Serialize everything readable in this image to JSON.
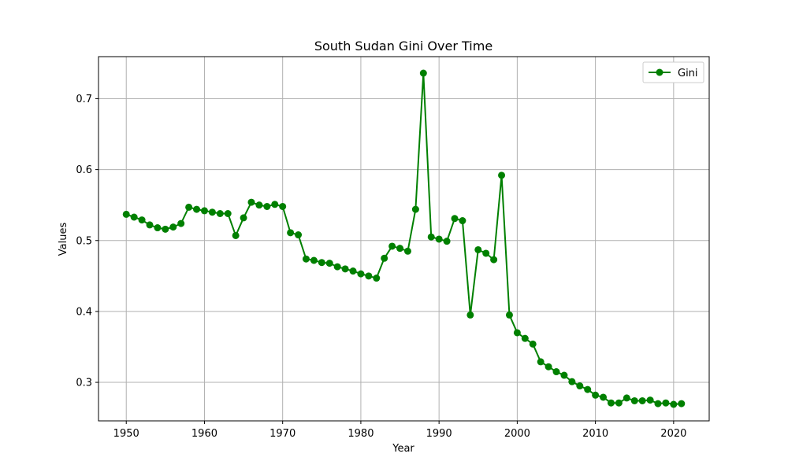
{
  "chart_data": {
    "type": "line",
    "title": "South Sudan Gini Over Time",
    "xlabel": "Year",
    "ylabel": "Values",
    "xlim": [
      1946.45,
      2024.55
    ],
    "ylim": [
      0.2457,
      0.7593
    ],
    "grid": true,
    "legend_position": "top-right",
    "x_ticks": [
      1950,
      1960,
      1970,
      1980,
      1990,
      2000,
      2010,
      2020
    ],
    "y_ticks": [
      0.3,
      0.4,
      0.5,
      0.6,
      0.7
    ],
    "x_tick_labels": [
      "1950",
      "1960",
      "1970",
      "1980",
      "1990",
      "2000",
      "2010",
      "2020"
    ],
    "y_tick_labels": [
      "0.3",
      "0.4",
      "0.5",
      "0.6",
      "0.7"
    ],
    "series": [
      {
        "name": "Gini",
        "color": "#008000",
        "marker": "circle",
        "x": [
          1950,
          1951,
          1952,
          1953,
          1954,
          1955,
          1956,
          1957,
          1958,
          1959,
          1960,
          1961,
          1962,
          1963,
          1964,
          1965,
          1966,
          1967,
          1968,
          1969,
          1970,
          1971,
          1972,
          1973,
          1974,
          1975,
          1976,
          1977,
          1978,
          1979,
          1980,
          1981,
          1982,
          1983,
          1984,
          1985,
          1986,
          1987,
          1988,
          1989,
          1990,
          1991,
          1992,
          1993,
          1994,
          1995,
          1996,
          1997,
          1998,
          1999,
          2000,
          2001,
          2002,
          2003,
          2004,
          2005,
          2006,
          2007,
          2008,
          2009,
          2010,
          2011,
          2012,
          2013,
          2014,
          2015,
          2016,
          2017,
          2018,
          2019,
          2020,
          2021
        ],
        "y": [
          0.537,
          0.533,
          0.529,
          0.522,
          0.518,
          0.516,
          0.519,
          0.524,
          0.547,
          0.544,
          0.542,
          0.54,
          0.538,
          0.538,
          0.507,
          0.532,
          0.554,
          0.55,
          0.548,
          0.551,
          0.548,
          0.511,
          0.508,
          0.474,
          0.472,
          0.469,
          0.468,
          0.463,
          0.46,
          0.457,
          0.453,
          0.45,
          0.447,
          0.475,
          0.492,
          0.489,
          0.485,
          0.544,
          0.736,
          0.505,
          0.502,
          0.499,
          0.531,
          0.528,
          0.395,
          0.487,
          0.482,
          0.473,
          0.592,
          0.395,
          0.37,
          0.362,
          0.354,
          0.329,
          0.322,
          0.315,
          0.31,
          0.301,
          0.295,
          0.29,
          0.282,
          0.279,
          0.271,
          0.271,
          0.278,
          0.274,
          0.274,
          0.275,
          0.27,
          0.271,
          0.269,
          0.27
        ]
      }
    ]
  }
}
